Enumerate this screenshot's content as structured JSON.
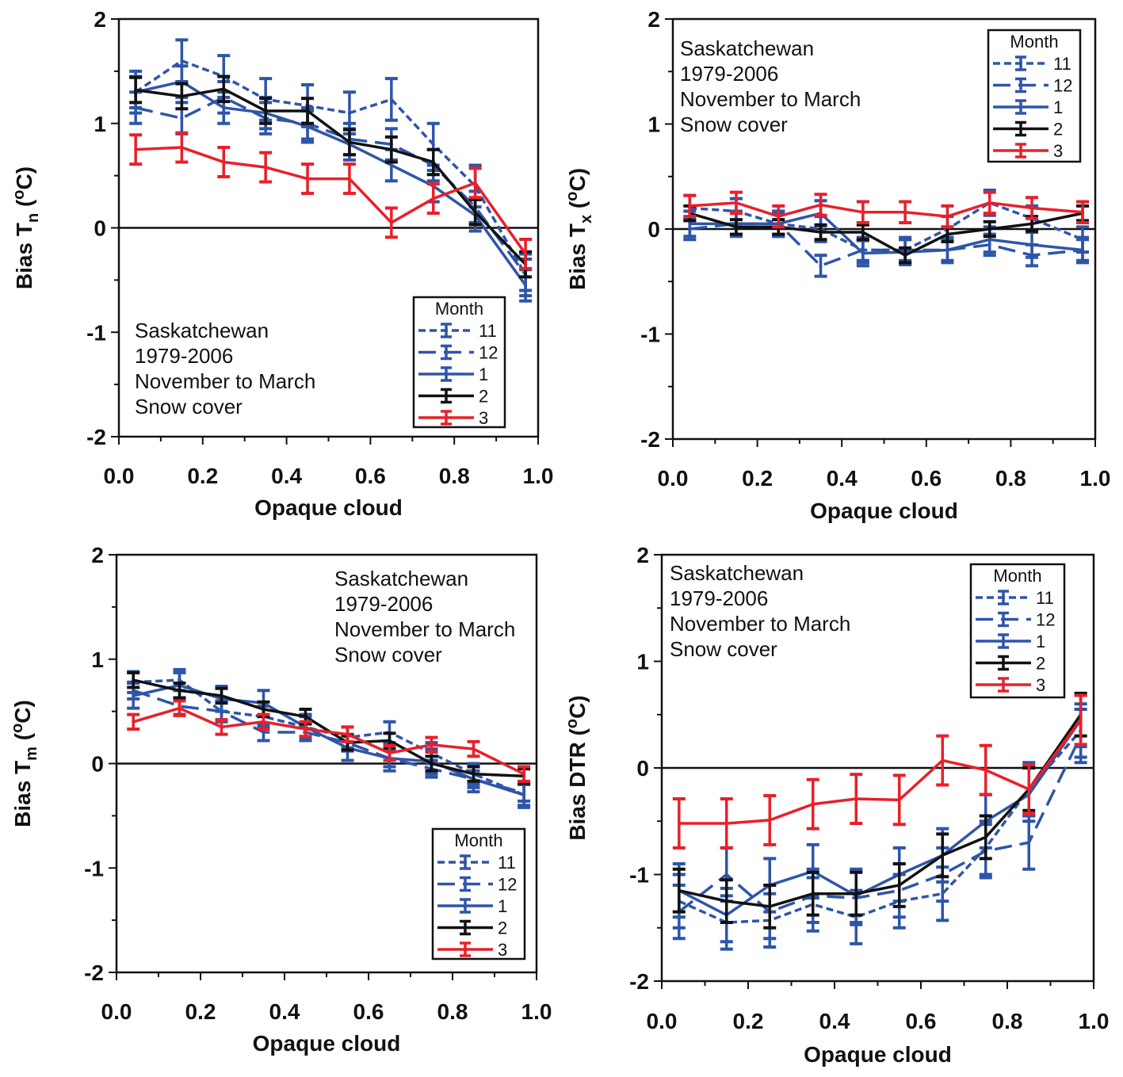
{
  "colors": {
    "month_11": "#2f55a8",
    "month_12": "#2f55a8",
    "month_1": "#2f55a8",
    "month_2": "#111111",
    "month_3": "#e8202a"
  },
  "line_styles": {
    "11": "short-dash",
    "12": "long-dash",
    "1": "solid",
    "2": "solid",
    "3": "solid"
  },
  "chart_data": [
    {
      "type": "line",
      "xlabel": "Opaque cloud",
      "ylabel": {
        "text": "Bias T",
        "sub": "n",
        "open": " (",
        "sup": "o",
        "close": "C)"
      },
      "xlim": [
        0,
        1
      ],
      "ylim": [
        -2,
        2
      ],
      "xticks": [
        "0.0",
        "0.2",
        "0.4",
        "0.6",
        "0.8",
        "1.0"
      ],
      "yticks": [
        "2",
        "1",
        "0",
        "-1",
        "-2"
      ],
      "annotation": [
        "Saskatchewan",
        "1979-2006",
        "November to March",
        "Snow cover"
      ],
      "legend_title": "Month",
      "x": [
        0.04,
        0.15,
        0.25,
        0.35,
        0.45,
        0.55,
        0.65,
        0.75,
        0.85,
        0.97
      ],
      "series": [
        {
          "name": "11",
          "y": [
            1.3,
            1.6,
            1.45,
            1.23,
            1.17,
            1.1,
            1.23,
            0.8,
            0.4,
            -0.45
          ],
          "err": 0.2
        },
        {
          "name": "12",
          "y": [
            1.15,
            1.05,
            1.25,
            1.05,
            1.0,
            0.85,
            0.8,
            0.6,
            0.2,
            -0.45
          ],
          "err": 0.15
        },
        {
          "name": "1",
          "y": [
            1.3,
            1.4,
            1.15,
            1.1,
            0.97,
            0.8,
            0.6,
            0.4,
            0.12,
            -0.55
          ],
          "err": 0.15
        },
        {
          "name": "2",
          "y": [
            1.32,
            1.26,
            1.33,
            1.12,
            1.12,
            0.82,
            0.75,
            0.63,
            0.15,
            -0.35
          ],
          "err": 0.12
        },
        {
          "name": "3",
          "y": [
            0.75,
            0.77,
            0.63,
            0.58,
            0.47,
            0.47,
            0.05,
            0.28,
            0.43,
            -0.25
          ],
          "err": 0.14
        }
      ]
    },
    {
      "type": "line",
      "xlabel": "Opaque cloud",
      "ylabel": {
        "text": "Bias T",
        "sub": "x",
        "open": " (",
        "sup": "o",
        "close": "C)"
      },
      "xlim": [
        0,
        1
      ],
      "ylim": [
        -2,
        2
      ],
      "xticks": [
        "0.0",
        "0.2",
        "0.4",
        "0.6",
        "0.8",
        "1.0"
      ],
      "yticks": [
        "2",
        "1",
        "0",
        "-1",
        "-2"
      ],
      "annotation": [
        "Saskatchewan",
        "1979-2006",
        "November to March",
        "Snow cover"
      ],
      "legend_title": "Month",
      "x": [
        0.04,
        0.15,
        0.25,
        0.35,
        0.45,
        0.55,
        0.65,
        0.75,
        0.85,
        0.97
      ],
      "series": [
        {
          "name": "11",
          "y": [
            0.2,
            0.17,
            0.05,
            0.0,
            -0.2,
            -0.2,
            0.0,
            0.25,
            0.1,
            -0.1
          ],
          "err": 0.12
        },
        {
          "name": "12",
          "y": [
            0.0,
            0.05,
            0.05,
            -0.35,
            -0.2,
            -0.2,
            -0.2,
            -0.15,
            -0.25,
            -0.2
          ],
          "err": 0.1
        },
        {
          "name": "1",
          "y": [
            0.05,
            0.05,
            0.05,
            0.15,
            -0.23,
            -0.22,
            -0.2,
            -0.1,
            -0.15,
            -0.2
          ],
          "err": 0.12
        },
        {
          "name": "2",
          "y": [
            0.15,
            0.02,
            0.02,
            -0.03,
            -0.03,
            -0.25,
            -0.05,
            0.0,
            0.05,
            0.15
          ],
          "err": 0.07
        },
        {
          "name": "3",
          "y": [
            0.22,
            0.25,
            0.12,
            0.23,
            0.16,
            0.16,
            0.12,
            0.25,
            0.2,
            0.16
          ],
          "err": 0.1
        }
      ]
    },
    {
      "type": "line",
      "xlabel": "Opaque cloud",
      "ylabel": {
        "text": "Bias T",
        "sub": "m",
        "open": " (",
        "sup": "o",
        "close": "C)"
      },
      "xlim": [
        0,
        1
      ],
      "ylim": [
        -2,
        2
      ],
      "xticks": [
        "0.0",
        "0.2",
        "0.4",
        "0.6",
        "0.8",
        "1.0"
      ],
      "yticks": [
        "2",
        "1",
        "0",
        "-1",
        "-2"
      ],
      "annotation": [
        "Saskatchewan",
        "1979-2006",
        "November to March",
        "Snow cover"
      ],
      "legend_title": "Month",
      "x": [
        0.04,
        0.15,
        0.25,
        0.35,
        0.45,
        0.55,
        0.65,
        0.75,
        0.85,
        0.97
      ],
      "series": [
        {
          "name": "11",
          "y": [
            0.78,
            0.8,
            0.5,
            0.45,
            0.35,
            0.25,
            0.3,
            0.1,
            -0.1,
            -0.3
          ],
          "err": 0.1
        },
        {
          "name": "12",
          "y": [
            0.7,
            0.55,
            0.5,
            0.3,
            0.3,
            0.2,
            0.05,
            -0.05,
            -0.15,
            -0.28
          ],
          "err": 0.08
        },
        {
          "name": "1",
          "y": [
            0.65,
            0.75,
            0.62,
            0.58,
            0.35,
            0.15,
            0.05,
            0.02,
            -0.15,
            -0.3
          ],
          "err": 0.12
        },
        {
          "name": "2",
          "y": [
            0.8,
            0.7,
            0.65,
            0.52,
            0.45,
            0.2,
            0.22,
            0.0,
            -0.1,
            -0.12
          ],
          "err": 0.07
        },
        {
          "name": "3",
          "y": [
            0.4,
            0.53,
            0.35,
            0.4,
            0.33,
            0.28,
            0.1,
            0.18,
            0.14,
            -0.1
          ],
          "err": 0.07
        }
      ]
    },
    {
      "type": "line",
      "xlabel": "Opaque cloud",
      "ylabel": {
        "text": "Bias DTR",
        "sub": "",
        "open": " (",
        "sup": "o",
        "close": "C)"
      },
      "xlim": [
        0,
        1
      ],
      "ylim": [
        -2,
        2
      ],
      "xticks": [
        "0.0",
        "0.2",
        "0.4",
        "0.6",
        "0.8",
        "1.0"
      ],
      "yticks": [
        "2",
        "1",
        "0",
        "-1",
        "-2"
      ],
      "annotation": [
        "Saskatchewan",
        "1979-2006",
        "November to March",
        "Snow cover"
      ],
      "legend_title": "Month",
      "x": [
        0.04,
        0.15,
        0.25,
        0.35,
        0.45,
        0.55,
        0.65,
        0.75,
        0.85,
        0.97
      ],
      "series": [
        {
          "name": "11",
          "y": [
            -1.25,
            -1.45,
            -1.43,
            -1.28,
            -1.4,
            -1.25,
            -1.18,
            -0.75,
            -0.2,
            0.35
          ],
          "err": 0.25
        },
        {
          "name": "12",
          "y": [
            -1.35,
            -1.0,
            -1.35,
            -1.2,
            -1.22,
            -1.15,
            -1.0,
            -0.78,
            -0.7,
            0.3
          ],
          "err": 0.25
        },
        {
          "name": "1",
          "y": [
            -1.15,
            -1.38,
            -1.1,
            -0.97,
            -1.2,
            -1.0,
            -0.82,
            -0.5,
            -0.25,
            0.45
          ],
          "err": 0.25
        },
        {
          "name": "2",
          "y": [
            -1.15,
            -1.25,
            -1.3,
            -1.18,
            -1.18,
            -1.1,
            -0.82,
            -0.65,
            -0.2,
            0.5
          ],
          "err": 0.2
        },
        {
          "name": "3",
          "y": [
            -0.52,
            -0.52,
            -0.49,
            -0.34,
            -0.29,
            -0.3,
            0.07,
            -0.02,
            -0.2,
            0.45
          ],
          "err": 0.23
        }
      ]
    }
  ]
}
